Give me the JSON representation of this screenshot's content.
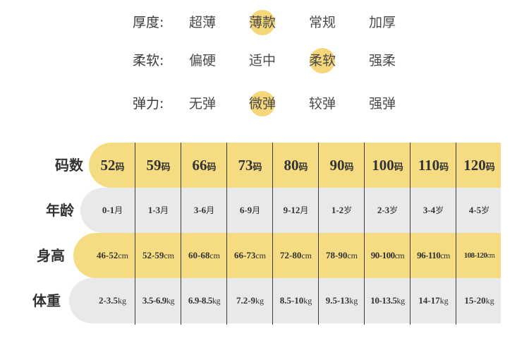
{
  "attributes": [
    {
      "label": "厚度:",
      "options": [
        "超薄",
        "薄款",
        "常规",
        "加厚"
      ],
      "selected": 1
    },
    {
      "label": "柔软:",
      "options": [
        "偏硬",
        "适中",
        "柔软",
        "强柔"
      ],
      "selected": 2
    },
    {
      "label": "弹力:",
      "options": [
        "无弹",
        "微弹",
        "较弹",
        "强弹"
      ],
      "selected": 1
    }
  ],
  "size_table": {
    "size_row": {
      "label": "码数",
      "cells": [
        {
          "num": "52",
          "unit": "码"
        },
        {
          "num": "59",
          "unit": "码"
        },
        {
          "num": "66",
          "unit": "码"
        },
        {
          "num": "73",
          "unit": "码"
        },
        {
          "num": "80",
          "unit": "码"
        },
        {
          "num": "90",
          "unit": "码"
        },
        {
          "num": "100",
          "unit": "码"
        },
        {
          "num": "110",
          "unit": "码"
        },
        {
          "num": "120",
          "unit": "码"
        }
      ]
    },
    "age_row": {
      "label": "年龄",
      "cells": [
        {
          "num": "0-1",
          "unit": "月"
        },
        {
          "num": "1-3",
          "unit": "月"
        },
        {
          "num": "3-6",
          "unit": "月"
        },
        {
          "num": "6-9",
          "unit": "月"
        },
        {
          "num": "9-12",
          "unit": "月"
        },
        {
          "num": "1-2",
          "unit": "岁"
        },
        {
          "num": "2-3",
          "unit": "岁"
        },
        {
          "num": "3-4",
          "unit": "岁"
        },
        {
          "num": "4-5",
          "unit": "岁"
        }
      ]
    },
    "height_row": {
      "label": "身高",
      "cells": [
        {
          "num": "46-52",
          "unit": "cm"
        },
        {
          "num": "52-59",
          "unit": "cm"
        },
        {
          "num": "60-68",
          "unit": "cm"
        },
        {
          "num": "66-73",
          "unit": "cm"
        },
        {
          "num": "72-80",
          "unit": "cm"
        },
        {
          "num": "78-90",
          "unit": "cm"
        },
        {
          "num": "90-100",
          "unit": "cm"
        },
        {
          "num": "96-110",
          "unit": "cm"
        },
        {
          "num": "108-120",
          "unit": "cm"
        }
      ]
    },
    "weight_row": {
      "label": "体重",
      "cells": [
        {
          "num": "2-3.5",
          "unit": "kg"
        },
        {
          "num": "3.5-6.9",
          "unit": "kg"
        },
        {
          "num": "6.9-8.5",
          "unit": "kg"
        },
        {
          "num": "7.2-9",
          "unit": "kg"
        },
        {
          "num": "8.5-10",
          "unit": "kg"
        },
        {
          "num": "9.5-13",
          "unit": "kg"
        },
        {
          "num": "10-13.5",
          "unit": "kg"
        },
        {
          "num": "14-17",
          "unit": "kg"
        },
        {
          "num": "15-20",
          "unit": "kg"
        }
      ]
    }
  },
  "colors": {
    "highlight": "#f5d77a",
    "band_yellow": "#f5dc83",
    "band_gray": "#e9e9e9"
  }
}
